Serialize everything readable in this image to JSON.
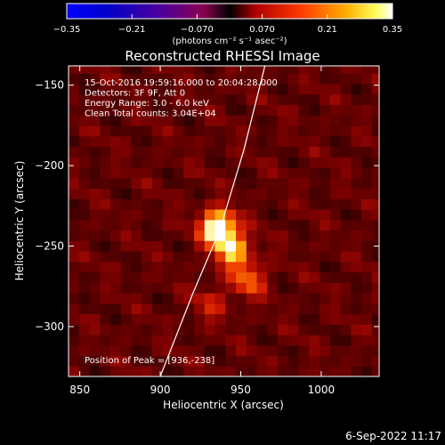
{
  "chart_data": {
    "type": "heatmap",
    "title": "Reconstructed RHESSI Image",
    "xlabel": "Heliocentric X (arcsec)",
    "ylabel": "Heliocentric Y (arcsec)",
    "xlim": [
      843,
      1036
    ],
    "ylim": [
      -331,
      -138
    ],
    "xticks": [
      850,
      900,
      950,
      1000
    ],
    "yticks": [
      -150,
      -200,
      -250,
      -300
    ],
    "colorbar": {
      "range": [
        -0.35,
        0.35
      ],
      "ticks": [
        -0.35,
        -0.21,
        -0.07,
        0.07,
        0.21,
        0.35
      ],
      "tick_labels": [
        "−0.35",
        "−0.21",
        "−0.070",
        "0.070",
        "0.21",
        "0.35"
      ],
      "label": "(photons cm⁻² s⁻¹ asec⁻²)",
      "colormap": "blue-purple-red-yellow-white"
    },
    "annotations": [
      "15-Oct-2016 19:59:16.000 to 20:04:28.000",
      "Detectors: 3F 9F, Att 0",
      "Energy Range: 3.0 - 6.0 keV",
      "Clean    Total counts: 3.04E+04"
    ],
    "peak_label": "Position of Peak = [936,-238]",
    "sources": [
      {
        "x": 936,
        "y": -238,
        "intensity": 0.35
      },
      {
        "x": 945,
        "y": -252,
        "intensity": 0.24
      },
      {
        "x": 955,
        "y": -270,
        "intensity": 0.16
      },
      {
        "x": 932,
        "y": -285,
        "intensity": 0.09
      }
    ],
    "limb_curve": [
      [
        900,
        -331
      ],
      [
        920,
        -280
      ],
      [
        937,
        -240
      ],
      [
        952,
        -190
      ],
      [
        965,
        -138
      ]
    ],
    "limb_color": "#ffffff"
  },
  "footer": {
    "date": "6-Sep-2022 11:17"
  }
}
